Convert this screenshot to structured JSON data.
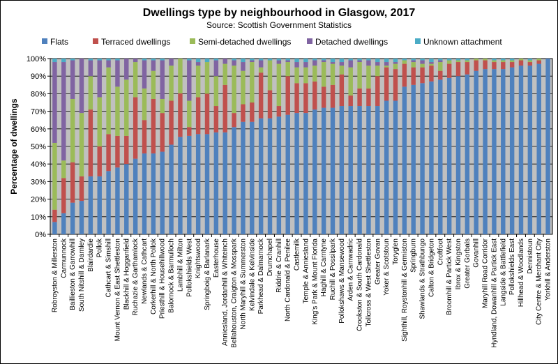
{
  "chart_data": {
    "type": "bar",
    "stacked": true,
    "normalized": true,
    "title": "Dwellings type by neighbourhood in Glasgow, 2017",
    "subtitle": "Source: Scottish Government Statistics",
    "xlabel": "",
    "ylabel": "Percentage of dwellings",
    "ylim": [
      0,
      100
    ],
    "y_ticks": [
      "0%",
      "10%",
      "20%",
      "30%",
      "40%",
      "50%",
      "60%",
      "70%",
      "80%",
      "90%",
      "100%"
    ],
    "grid": true,
    "plot_background": "#c0c0c0",
    "legend_position": "top",
    "categories": [
      "Robroyston & Millerston",
      "Carmunnock",
      "Baillieston & Garrowhill",
      "South Nitshill & Darnley",
      "Blairdardie",
      "Pollok",
      "Cathcart & Simshill",
      "Mount Vernon & East Shettleston",
      "Blackhill & Hogganfield",
      "Ruchazie & Garthamlock",
      "Newlands & Cathcart",
      "Corkerhill & North Pollok",
      "Priesthill & Househillwood",
      "Balornock & Barmulloch",
      "Lambhill & Milton",
      "Pollokshields West",
      "Knightswood",
      "Springboig & Barlanark",
      "Easterhouse",
      "Anniesland, Jordanhill & Whiteinch",
      "Bellahouston, Craigton & Mosspark",
      "North Maryhill & Summerston",
      "Kelvindale & Kelvinside",
      "Parkhead & Dalmarnock",
      "Drumchapel",
      "Riddrie & Cranhill",
      "North Cardonald & Penilee",
      "Castlemilk",
      "Temple & Anniesland",
      "King's Park & Mount Florida",
      "Haghill & Carntyne",
      "Ruchill & Possilpark",
      "Pollokshaws & Mansewood",
      "Arden & Carnwadric",
      "Crookston & South Cardonald",
      "Tollcross & West Shettleston",
      "Greater Govan",
      "Yoker & Scotstoun",
      "Toryglen",
      "Sighthill, Roystonhill & Germiston",
      "Springburn",
      "Shawlands & Strathbungo",
      "Calton & Bridgeton",
      "Croftfoot",
      "Broomhill & Partick West",
      "Ibrox & Kingston",
      "Greater Gorbals",
      "Govanhill",
      "Maryhill Road Corridor",
      "Hyndland, Dowanhill & Partick East",
      "Langside & Battlefield",
      "Pollokshields East",
      "Hillhead & Woodlands",
      "Dennistoun",
      "City Centre & Merchant City",
      "Yorkhill & Anderston"
    ],
    "series": [
      {
        "name": "Flats",
        "color": "#4f81bd",
        "values": [
          7,
          12,
          18,
          19,
          33,
          33,
          36,
          38,
          40,
          43,
          46,
          46,
          47,
          51,
          56,
          56,
          57,
          57,
          58,
          58,
          61,
          64,
          64,
          66,
          66,
          67,
          68,
          69,
          69,
          71,
          72,
          72,
          73,
          73,
          73,
          73,
          73,
          76,
          76,
          84,
          85,
          86,
          87,
          88,
          89,
          90,
          91,
          93,
          94,
          94,
          94,
          95,
          96,
          96,
          97,
          100
        ]
      },
      {
        "name": "Terraced dwellings",
        "color": "#c0504d",
        "values": [
          7,
          20,
          23,
          14,
          38,
          17,
          21,
          18,
          16,
          35,
          19,
          31,
          22,
          25,
          25,
          5,
          21,
          23,
          15,
          27,
          8,
          10,
          11,
          26,
          16,
          6,
          22,
          17,
          17,
          16,
          12,
          13,
          18,
          6,
          10,
          10,
          17,
          19,
          18,
          13,
          10,
          9,
          9,
          5,
          8,
          8,
          7,
          6,
          5,
          4,
          4,
          3,
          3,
          2,
          2,
          0
        ]
      },
      {
        "name": "Semi-detached dwellings",
        "color": "#9bbb59",
        "values": [
          38,
          10,
          36,
          36,
          19,
          28,
          38,
          28,
          32,
          20,
          18,
          16,
          8,
          20,
          20,
          15,
          18,
          18,
          17,
          12,
          27,
          19,
          23,
          3,
          17,
          24,
          8,
          9,
          9,
          9,
          14,
          12,
          5,
          16,
          15,
          13,
          6,
          1,
          3,
          2,
          3,
          2,
          1,
          5,
          2,
          1,
          1,
          1,
          1,
          1,
          1,
          1,
          1,
          1,
          1,
          0
        ]
      },
      {
        "name": "Detached dwellings",
        "color": "#8064a2",
        "values": [
          46,
          56,
          22,
          31,
          9,
          21,
          4,
          15,
          12,
          2,
          16,
          6,
          22,
          4,
          0,
          23,
          2,
          0,
          9,
          3,
          3,
          5,
          1,
          4,
          0,
          2,
          1,
          3,
          3,
          3,
          1,
          1,
          2,
          4,
          1,
          3,
          2,
          2,
          1,
          0,
          1,
          2,
          1,
          1,
          0,
          0,
          0,
          0,
          0,
          0,
          0,
          0,
          0,
          0,
          0,
          0
        ]
      },
      {
        "name": "Unknown attachment",
        "color": "#4bacc6",
        "values": [
          2,
          2,
          1,
          0,
          1,
          1,
          1,
          1,
          0,
          0,
          1,
          1,
          1,
          0,
          0,
          1,
          2,
          2,
          1,
          0,
          1,
          2,
          1,
          1,
          1,
          1,
          1,
          2,
          2,
          1,
          1,
          2,
          2,
          1,
          1,
          1,
          2,
          2,
          2,
          1,
          1,
          1,
          2,
          1,
          1,
          1,
          1,
          0,
          0,
          1,
          1,
          1,
          0,
          1,
          0,
          0
        ]
      }
    ]
  }
}
